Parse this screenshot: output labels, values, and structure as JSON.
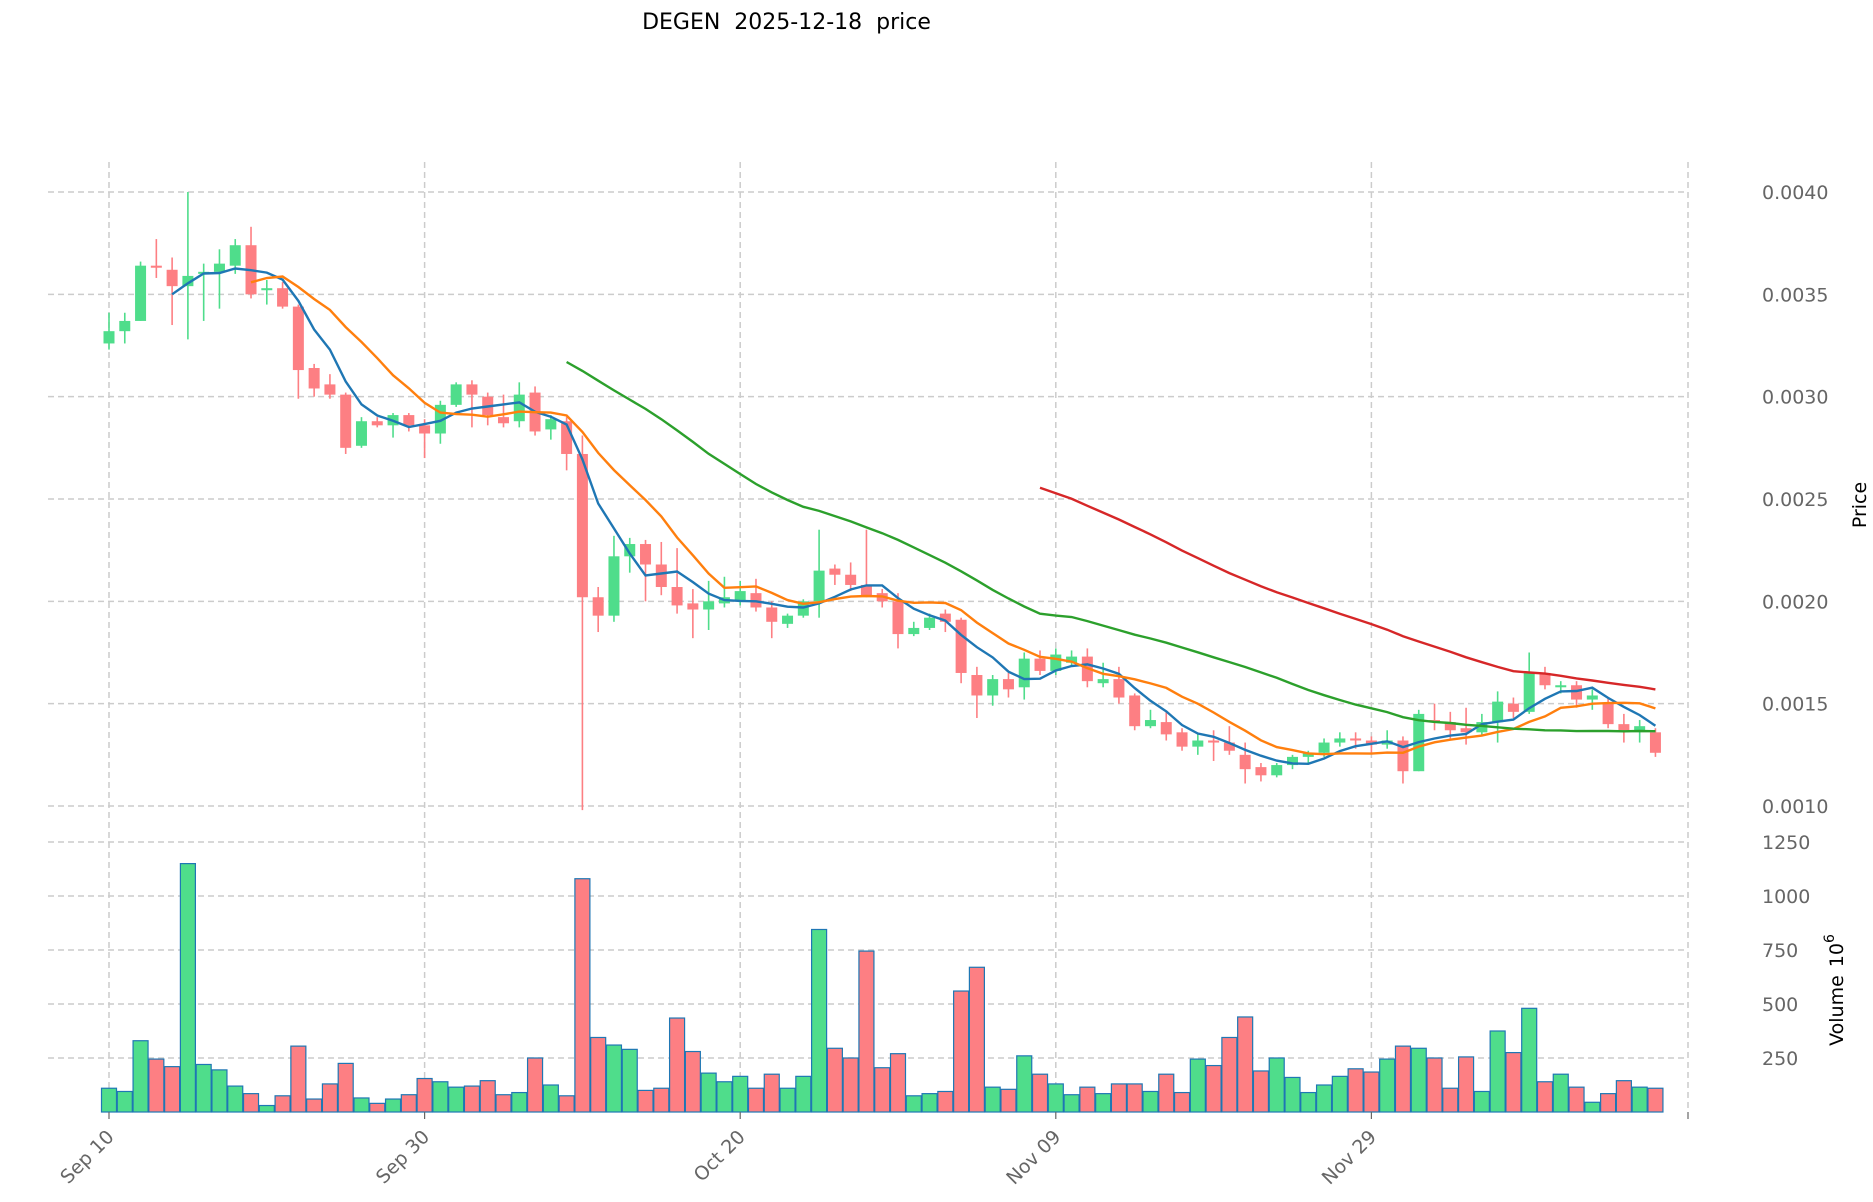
{
  "chart_data": {
    "type": "candlestick",
    "title": "DEGEN  2025-12-18  price",
    "ylabel": "Price",
    "volume_label": "Volume",
    "volume_exponent": "10",
    "volume_exponent_power": "6",
    "start_date": "2025-09-10",
    "xtick_labels": [
      {
        "index": 0,
        "label": "Sep 10"
      },
      {
        "index": 20,
        "label": "Sep 30"
      },
      {
        "index": 40,
        "label": "Oct 20"
      },
      {
        "index": 60,
        "label": "Nov 09"
      },
      {
        "index": 80,
        "label": "Nov 29"
      }
    ],
    "price_ticks": [
      "0.0010",
      "0.0015",
      "0.0020",
      "0.0025",
      "0.0030",
      "0.0035",
      "0.0040"
    ],
    "price_tick_values": [
      0.001,
      0.0015,
      0.002,
      0.0025,
      0.003,
      0.0035,
      0.004
    ],
    "volume_ticks": [
      "250",
      "500",
      "750",
      "1000",
      "1250"
    ],
    "volume_tick_values": [
      250,
      500,
      750,
      1000,
      1250
    ],
    "ylim": [
      0.00093,
      0.00416
    ],
    "volume_ylim": [
      0,
      1300
    ],
    "moving_averages": [
      {
        "window": 5,
        "color": "#1f77b4"
      },
      {
        "window": 10,
        "color": "#ff7f0e"
      },
      {
        "window": 30,
        "color": "#2ca02c"
      },
      {
        "window": 60,
        "color": "#d62728"
      }
    ],
    "up_color": "#4fdd8b",
    "down_color": "#fd7f83",
    "ohlc": [
      [
        0.00326,
        0.00341,
        0.00323,
        0.00332
      ],
      [
        0.00332,
        0.00341,
        0.00326,
        0.00337
      ],
      [
        0.00337,
        0.00366,
        0.00337,
        0.00364
      ],
      [
        0.00364,
        0.00377,
        0.00358,
        0.00363
      ],
      [
        0.00362,
        0.00368,
        0.00335,
        0.00354
      ],
      [
        0.00354,
        0.004,
        0.00328,
        0.00359
      ],
      [
        0.0036,
        0.00365,
        0.00337,
        0.00361
      ],
      [
        0.00361,
        0.00372,
        0.00343,
        0.00365
      ],
      [
        0.00364,
        0.00377,
        0.0036,
        0.00374
      ],
      [
        0.00374,
        0.00383,
        0.00348,
        0.0035
      ],
      [
        0.00352,
        0.00357,
        0.00345,
        0.00353
      ],
      [
        0.00353,
        0.00356,
        0.00343,
        0.00344
      ],
      [
        0.00344,
        0.00345,
        0.00299,
        0.00313
      ],
      [
        0.00314,
        0.00316,
        0.003,
        0.00304
      ],
      [
        0.00306,
        0.00311,
        0.00299,
        0.00301
      ],
      [
        0.00301,
        0.00302,
        0.00272,
        0.00275
      ],
      [
        0.00276,
        0.0029,
        0.00275,
        0.00288
      ],
      [
        0.00288,
        0.0029,
        0.00285,
        0.00286
      ],
      [
        0.00286,
        0.00292,
        0.0028,
        0.00291
      ],
      [
        0.00291,
        0.00292,
        0.00283,
        0.00286
      ],
      [
        0.00286,
        0.00289,
        0.0027,
        0.00282
      ],
      [
        0.00282,
        0.00298,
        0.00277,
        0.00296
      ],
      [
        0.00296,
        0.00307,
        0.00295,
        0.00306
      ],
      [
        0.00306,
        0.00308,
        0.00285,
        0.00301
      ],
      [
        0.003,
        0.00302,
        0.00286,
        0.00291
      ],
      [
        0.0029,
        0.00301,
        0.00285,
        0.00287
      ],
      [
        0.00288,
        0.00307,
        0.00285,
        0.00301
      ],
      [
        0.00302,
        0.00305,
        0.00281,
        0.00283
      ],
      [
        0.00284,
        0.00291,
        0.00279,
        0.00289
      ],
      [
        0.00288,
        0.0029,
        0.00264,
        0.00272
      ],
      [
        0.00272,
        0.00281,
        0.00098,
        0.00202
      ],
      [
        0.00202,
        0.00207,
        0.00185,
        0.00193
      ],
      [
        0.00193,
        0.00232,
        0.0019,
        0.00222
      ],
      [
        0.00222,
        0.00231,
        0.00214,
        0.00228
      ],
      [
        0.00228,
        0.0023,
        0.002,
        0.00218
      ],
      [
        0.00218,
        0.00229,
        0.00203,
        0.00207
      ],
      [
        0.00207,
        0.00226,
        0.00194,
        0.00198
      ],
      [
        0.00199,
        0.00206,
        0.00182,
        0.00196
      ],
      [
        0.00196,
        0.0021,
        0.00186,
        0.002
      ],
      [
        0.00199,
        0.00212,
        0.00197,
        0.00202
      ],
      [
        0.002,
        0.0021,
        0.00198,
        0.00205
      ],
      [
        0.00204,
        0.00211,
        0.00195,
        0.00197
      ],
      [
        0.00197,
        0.002,
        0.00182,
        0.0019
      ],
      [
        0.00189,
        0.00194,
        0.00187,
        0.00193
      ],
      [
        0.00193,
        0.00201,
        0.00192,
        0.002
      ],
      [
        0.002,
        0.00235,
        0.00192,
        0.00215
      ],
      [
        0.00216,
        0.00218,
        0.00208,
        0.00213
      ],
      [
        0.00213,
        0.00219,
        0.00205,
        0.00208
      ],
      [
        0.00208,
        0.00235,
        0.00202,
        0.00203
      ],
      [
        0.00204,
        0.00206,
        0.00197,
        0.002
      ],
      [
        0.002,
        0.00204,
        0.00177,
        0.00184
      ],
      [
        0.00184,
        0.0019,
        0.00183,
        0.00187
      ],
      [
        0.00187,
        0.00194,
        0.00186,
        0.00192
      ],
      [
        0.00194,
        0.00196,
        0.00185,
        0.0019
      ],
      [
        0.00191,
        0.00192,
        0.0016,
        0.00165
      ],
      [
        0.00164,
        0.00168,
        0.00143,
        0.00154
      ],
      [
        0.00154,
        0.00164,
        0.00149,
        0.00162
      ],
      [
        0.00162,
        0.00165,
        0.00153,
        0.00157
      ],
      [
        0.00158,
        0.00175,
        0.00152,
        0.00172
      ],
      [
        0.00172,
        0.00176,
        0.00164,
        0.00166
      ],
      [
        0.00166,
        0.00177,
        0.00164,
        0.00174
      ],
      [
        0.0017,
        0.00176,
        0.00168,
        0.00173
      ],
      [
        0.00173,
        0.00177,
        0.00158,
        0.00161
      ],
      [
        0.0016,
        0.0017,
        0.00158,
        0.00162
      ],
      [
        0.00162,
        0.00168,
        0.0015,
        0.00153
      ],
      [
        0.00154,
        0.00155,
        0.00137,
        0.00139
      ],
      [
        0.00139,
        0.00147,
        0.00138,
        0.00142
      ],
      [
        0.00141,
        0.00146,
        0.00132,
        0.00135
      ],
      [
        0.00136,
        0.00138,
        0.00127,
        0.00129
      ],
      [
        0.00129,
        0.00135,
        0.00125,
        0.00132
      ],
      [
        0.00132,
        0.00137,
        0.00122,
        0.00131
      ],
      [
        0.00131,
        0.00139,
        0.00125,
        0.00127
      ],
      [
        0.00125,
        0.00131,
        0.00111,
        0.00118
      ],
      [
        0.00119,
        0.00121,
        0.00112,
        0.00115
      ],
      [
        0.00115,
        0.00121,
        0.00114,
        0.0012
      ],
      [
        0.0012,
        0.00125,
        0.00118,
        0.00124
      ],
      [
        0.00124,
        0.00127,
        0.00121,
        0.00126
      ],
      [
        0.00126,
        0.00133,
        0.00124,
        0.00131
      ],
      [
        0.00131,
        0.00136,
        0.00129,
        0.00133
      ],
      [
        0.00133,
        0.00136,
        0.00128,
        0.00132
      ],
      [
        0.00132,
        0.00134,
        0.00126,
        0.0013
      ],
      [
        0.0013,
        0.00137,
        0.00128,
        0.00132
      ],
      [
        0.00132,
        0.00134,
        0.00111,
        0.00117
      ],
      [
        0.00117,
        0.00147,
        0.00117,
        0.00145
      ],
      [
        0.00142,
        0.0015,
        0.00137,
        0.00141
      ],
      [
        0.00141,
        0.00146,
        0.00133,
        0.00137
      ],
      [
        0.00138,
        0.00148,
        0.0013,
        0.00136
      ],
      [
        0.00136,
        0.00145,
        0.00134,
        0.00141
      ],
      [
        0.00141,
        0.00156,
        0.00131,
        0.00151
      ],
      [
        0.0015,
        0.00153,
        0.00143,
        0.00146
      ],
      [
        0.00146,
        0.00175,
        0.00145,
        0.00165
      ],
      [
        0.00165,
        0.00168,
        0.00157,
        0.00159
      ],
      [
        0.00158,
        0.00161,
        0.00155,
        0.00159
      ],
      [
        0.00159,
        0.00161,
        0.00148,
        0.00152
      ],
      [
        0.00152,
        0.00157,
        0.00147,
        0.00154
      ],
      [
        0.0015,
        0.00153,
        0.00138,
        0.0014
      ],
      [
        0.0014,
        0.00145,
        0.00131,
        0.00137
      ],
      [
        0.00137,
        0.00142,
        0.00131,
        0.00139
      ],
      [
        0.00136,
        0.00138,
        0.00124,
        0.00126
      ]
    ],
    "volume": [
      110,
      95,
      330,
      245,
      210,
      1150,
      220,
      195,
      120,
      85,
      30,
      75,
      305,
      60,
      130,
      225,
      65,
      40,
      60,
      80,
      155,
      140,
      115,
      120,
      145,
      80,
      90,
      250,
      125,
      75,
      1080,
      345,
      310,
      290,
      100,
      110,
      435,
      280,
      180,
      140,
      165,
      110,
      175,
      110,
      165,
      845,
      295,
      250,
      745,
      205,
      270,
      75,
      85,
      95,
      560,
      670,
      115,
      105,
      260,
      175,
      130,
      80,
      115,
      85,
      130,
      130,
      95,
      175,
      90,
      245,
      215,
      345,
      440,
      190,
      250,
      160,
      90,
      125,
      165,
      200,
      185,
      245,
      305,
      295,
      250,
      110,
      255,
      95,
      375,
      275,
      480,
      140,
      175,
      115,
      45,
      85,
      145,
      115,
      110
    ]
  }
}
